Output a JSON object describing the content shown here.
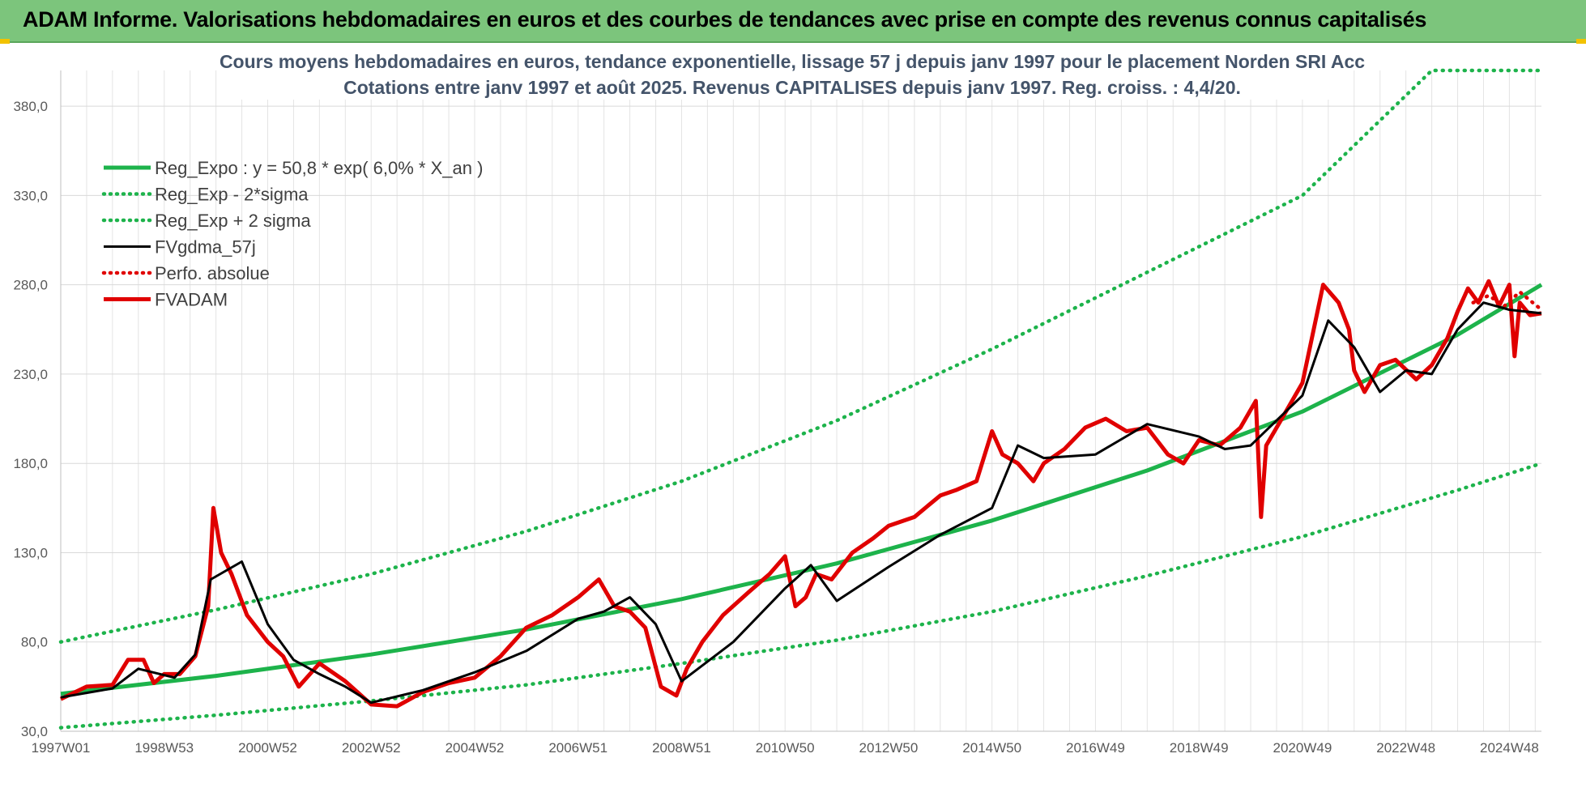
{
  "header": {
    "title": "ADAM Informe. Valorisations hebdomadaires en euros et des courbes de tendances avec prise en compte des revenus connus capitalisés"
  },
  "chart_data": {
    "type": "line",
    "title": "Cours moyens hebdomadaires en euros, tendance exponentielle, lissage 57 j depuis janv 1997  pour le placement Norden SRI Acc",
    "subtitle": "Cotations entre janv 1997 et août 2025. Revenus CAPITALISES depuis janv 1997. Reg. croiss. : 4,4/20.",
    "ylim": [
      30,
      400
    ],
    "yticks": [
      "30,0",
      "80,0",
      "130,0",
      "180,0",
      "230,0",
      "280,0",
      "330,0",
      "380,0"
    ],
    "ytick_values": [
      30,
      80,
      130,
      180,
      230,
      280,
      330,
      380
    ],
    "xlim": [
      1997.0,
      2025.62
    ],
    "xticks": [
      "1997W01",
      "1998W53",
      "2000W52",
      "2002W52",
      "2004W52",
      "2006W51",
      "2008W51",
      "2010W50",
      "2012W50",
      "2014W50",
      "2016W49",
      "2018W49",
      "2020W49",
      "2022W48",
      "2024W48"
    ],
    "xtick_values": [
      1997.0,
      1999.0,
      2001.0,
      2003.0,
      2005.0,
      2007.0,
      2009.0,
      2011.0,
      2013.0,
      2015.0,
      2017.0,
      2019.0,
      2021.0,
      2023.0,
      2025.0
    ],
    "grid": true,
    "legend_position": "top-left",
    "colors": {
      "trend": "#1db34b",
      "band": "#1db34b",
      "smoothed": "#000000",
      "absolute": "#e00000",
      "price": "#e00000"
    },
    "series": [
      {
        "name": "Reg_Expo : y = 50,8 * exp( 6,0% *  X_an )",
        "style": "solid-thick",
        "color": "#1db34b",
        "x": [
          1997.0,
          2000.0,
          2003.0,
          2006.0,
          2009.0,
          2012.0,
          2015.0,
          2018.0,
          2021.0,
          2024.0,
          2025.62
        ],
        "y": [
          51,
          61,
          73,
          87,
          104,
          124,
          148,
          176,
          209,
          252,
          280
        ]
      },
      {
        "name": "Reg_Exp - 2*sigma",
        "style": "dotted",
        "color": "#1db34b",
        "x": [
          1997.0,
          2000.0,
          2003.0,
          2006.0,
          2009.0,
          2012.0,
          2015.0,
          2018.0,
          2021.0,
          2024.0,
          2025.62
        ],
        "y": [
          32,
          39,
          47,
          56,
          68,
          81,
          97,
          117,
          139,
          165,
          180
        ]
      },
      {
        "name": "Reg_Exp + 2 sigma",
        "style": "dotted",
        "color": "#1db34b",
        "x": [
          1997.0,
          2000.0,
          2003.0,
          2006.0,
          2009.0,
          2012.0,
          2015.0,
          2018.0,
          2021.0,
          2023.5,
          2025.62
        ],
        "y": [
          80,
          98,
          118,
          142,
          170,
          204,
          244,
          287,
          330,
          400,
          400
        ]
      },
      {
        "name": "FVgdma_57j",
        "style": "solid",
        "color": "#000000",
        "x": [
          1997.0,
          1998.0,
          1998.5,
          1999.2,
          1999.6,
          1999.9,
          2000.5,
          2001.0,
          2001.5,
          2002.0,
          2002.5,
          2003.0,
          2004.0,
          2005.0,
          2006.0,
          2007.0,
          2007.5,
          2008.0,
          2008.5,
          2009.0,
          2010.0,
          2011.0,
          2011.5,
          2012.0,
          2013.0,
          2014.0,
          2015.0,
          2015.5,
          2016.0,
          2017.0,
          2018.0,
          2019.0,
          2019.5,
          2020.0,
          2021.0,
          2021.5,
          2022.0,
          2022.5,
          2023.0,
          2023.5,
          2024.0,
          2024.5,
          2025.0,
          2025.62
        ],
        "y": [
          49,
          54,
          65,
          60,
          73,
          115,
          125,
          90,
          70,
          62,
          55,
          46,
          53,
          63,
          75,
          93,
          97,
          105,
          90,
          58,
          80,
          110,
          123,
          103,
          122,
          140,
          155,
          190,
          183,
          185,
          202,
          195,
          188,
          190,
          218,
          260,
          245,
          220,
          232,
          230,
          255,
          270,
          266,
          264
        ]
      },
      {
        "name": "Perfo. absolue",
        "style": "dotted",
        "color": "#e00000",
        "x": [
          2024.3,
          2024.6,
          2024.9,
          2025.2,
          2025.62
        ],
        "y": [
          270,
          274,
          268,
          276,
          266
        ]
      },
      {
        "name": "FVADAM",
        "style": "solid-thick",
        "color": "#e00000",
        "x": [
          1997.0,
          1997.5,
          1998.0,
          1998.3,
          1998.6,
          1998.8,
          1999.0,
          1999.3,
          1999.6,
          1999.85,
          1999.95,
          2000.1,
          2000.3,
          2000.6,
          2001.0,
          2001.3,
          2001.6,
          2002.0,
          2002.5,
          2003.0,
          2003.5,
          2004.0,
          2004.5,
          2005.0,
          2005.5,
          2006.0,
          2006.5,
          2007.0,
          2007.4,
          2007.7,
          2008.0,
          2008.3,
          2008.6,
          2008.9,
          2009.1,
          2009.4,
          2009.8,
          2010.3,
          2010.7,
          2011.0,
          2011.2,
          2011.4,
          2011.6,
          2011.9,
          2012.3,
          2012.7,
          2013.0,
          2013.5,
          2014.0,
          2014.3,
          2014.7,
          2015.0,
          2015.2,
          2015.5,
          2015.8,
          2016.0,
          2016.4,
          2016.8,
          2017.2,
          2017.6,
          2018.0,
          2018.4,
          2018.7,
          2019.0,
          2019.4,
          2019.8,
          2020.1,
          2020.2,
          2020.3,
          2020.6,
          2021.0,
          2021.4,
          2021.7,
          2021.9,
          2022.0,
          2022.2,
          2022.5,
          2022.8,
          2023.2,
          2023.5,
          2023.8,
          2024.0,
          2024.2,
          2024.4,
          2024.6,
          2024.8,
          2025.0,
          2025.1,
          2025.2,
          2025.4,
          2025.62
        ],
        "y": [
          48,
          55,
          56,
          70,
          70,
          57,
          62,
          62,
          72,
          100,
          155,
          130,
          118,
          95,
          80,
          72,
          55,
          68,
          58,
          45,
          44,
          52,
          57,
          60,
          72,
          88,
          95,
          105,
          115,
          100,
          97,
          88,
          55,
          50,
          65,
          80,
          95,
          108,
          118,
          128,
          100,
          105,
          118,
          115,
          130,
          138,
          145,
          150,
          162,
          165,
          170,
          198,
          185,
          180,
          170,
          180,
          188,
          200,
          205,
          198,
          200,
          185,
          180,
          193,
          190,
          200,
          215,
          150,
          190,
          205,
          225,
          280,
          270,
          255,
          232,
          220,
          235,
          238,
          227,
          235,
          250,
          265,
          278,
          270,
          282,
          268,
          280,
          240,
          270,
          263,
          264
        ]
      }
    ]
  }
}
